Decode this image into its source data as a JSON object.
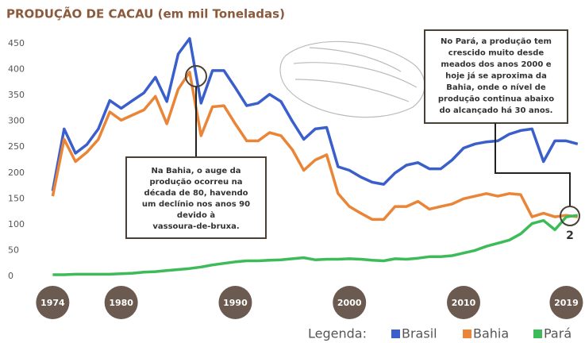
{
  "chart_data": {
    "type": "line",
    "title": "PRODUÇÃO DE CACAU (em mil Toneladas)",
    "x": [
      1974,
      1975,
      1976,
      1977,
      1978,
      1979,
      1980,
      1981,
      1982,
      1983,
      1984,
      1985,
      1986,
      1987,
      1988,
      1989,
      1990,
      1991,
      1992,
      1993,
      1994,
      1995,
      1996,
      1997,
      1998,
      1999,
      2000,
      2001,
      2002,
      2003,
      2004,
      2005,
      2006,
      2007,
      2008,
      2009,
      2010,
      2011,
      2012,
      2013,
      2014,
      2015,
      2016,
      2017,
      2018,
      2019,
      2020
    ],
    "xlim": [
      1973,
      2020.5
    ],
    "xticks": [
      1974,
      1980,
      1990,
      2000,
      2010,
      2019
    ],
    "ylim": [
      0,
      470
    ],
    "yticks": [
      0,
      50,
      100,
      150,
      200,
      250,
      300,
      350,
      400,
      450
    ],
    "legend_label": "Legenda:",
    "series": [
      {
        "name": "Brasil",
        "color": "#3a5fcd",
        "values": [
          165,
          285,
          238,
          255,
          285,
          340,
          325,
          340,
          355,
          385,
          338,
          430,
          460,
          335,
          398,
          398,
          365,
          330,
          335,
          352,
          338,
          300,
          265,
          285,
          288,
          212,
          205,
          192,
          182,
          178,
          200,
          215,
          220,
          208,
          208,
          225,
          248,
          256,
          260,
          262,
          275,
          282,
          285,
          222,
          262,
          262,
          256
        ]
      },
      {
        "name": "Bahia",
        "color": "#ea8538",
        "values": [
          155,
          265,
          222,
          240,
          265,
          318,
          302,
          312,
          322,
          348,
          295,
          362,
          395,
          272,
          328,
          330,
          295,
          262,
          262,
          278,
          272,
          245,
          205,
          225,
          235,
          160,
          135,
          122,
          110,
          110,
          135,
          135,
          145,
          130,
          135,
          140,
          150,
          155,
          160,
          155,
          160,
          158,
          115,
          122,
          115,
          118,
          115
        ]
      },
      {
        "name": "Pará",
        "color": "#3dbb58",
        "values": [
          3,
          3,
          4,
          4,
          4,
          4,
          5,
          6,
          8,
          9,
          11,
          13,
          15,
          18,
          22,
          25,
          28,
          30,
          30,
          31,
          32,
          34,
          36,
          32,
          33,
          33,
          34,
          33,
          31,
          30,
          34,
          33,
          35,
          38,
          38,
          40,
          45,
          50,
          58,
          64,
          70,
          82,
          102,
          108,
          90,
          115,
          118
        ]
      }
    ],
    "annotations": [
      {
        "lines": [
          "Na Bahia, o auge da",
          "produção ocorreu na",
          "década de 80, havendo",
          "um declínio nos anos 90",
          "devido à",
          "vassoura-de-bruxa."
        ]
      },
      {
        "lines": [
          "No Pará, a produção tem",
          "crescido muito desde",
          "meados dos anos 2000 e",
          "hoje já se aproxima da",
          "Bahia, onde o nível de",
          "produção continua abaixo",
          "do alcançado há 30 anos."
        ]
      },
      {
        "text": "2"
      }
    ]
  }
}
